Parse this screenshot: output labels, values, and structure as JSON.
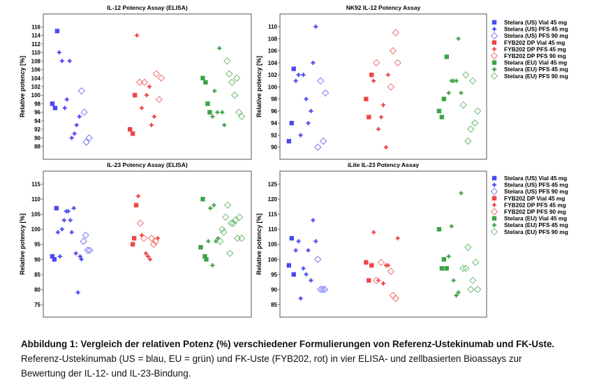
{
  "legend": [
    {
      "label": "Stelara (US) Vial 45 mg",
      "color": "#4a4af2",
      "marker": "square"
    },
    {
      "label": "Stelara (US) PFS 45 mg",
      "color": "#4a4af2",
      "marker": "plus"
    },
    {
      "label": "Stelara (US) PFS 90 mg",
      "color": "#7a7af5",
      "marker": "diamond"
    },
    {
      "label": "FYB202 DP Vial 45 mg",
      "color": "#ec4646",
      "marker": "square"
    },
    {
      "label": "FYB202 DP PFS 45 mg",
      "color": "#ec4646",
      "marker": "plus"
    },
    {
      "label": "FYB202 DP PFS 90 mg",
      "color": "#ef7272",
      "marker": "diamond"
    },
    {
      "label": "Stelara (EU) Vial 45 mg",
      "color": "#3da348",
      "marker": "square"
    },
    {
      "label": "Stelara (EU) PFS 45 mg",
      "color": "#3da348",
      "marker": "plus"
    },
    {
      "label": "Stelara (EU) PFS 90 mg",
      "color": "#6cbb72",
      "marker": "diamond"
    }
  ],
  "chart_data": [
    {
      "type": "scatter",
      "title": "IL-12 Potency Assay (ELISA)",
      "ylabel": "Relative potency [%]",
      "ylim": [
        85,
        119
      ],
      "yticks": [
        88,
        90,
        92,
        94,
        96,
        98,
        100,
        102,
        104,
        106,
        108,
        110,
        112,
        114,
        116
      ],
      "xlim": [
        0.5,
        3.5
      ],
      "series": [
        [
          [
            0.7,
            115
          ],
          [
            0.63,
            98
          ],
          [
            0.67,
            97
          ]
        ],
        [
          [
            0.73,
            110
          ],
          [
            0.77,
            108
          ],
          [
            0.88,
            108
          ],
          [
            0.84,
            99
          ],
          [
            0.81,
            97
          ],
          [
            1.02,
            95
          ],
          [
            0.98,
            93
          ],
          [
            0.95,
            91
          ],
          [
            0.91,
            90
          ]
        ],
        [
          [
            1.05,
            101
          ],
          [
            1.09,
            96
          ],
          [
            1.16,
            90
          ],
          [
            1.12,
            89
          ]
        ],
        [
          [
            1.82,
            100
          ],
          [
            1.75,
            92
          ],
          [
            1.79,
            91
          ]
        ],
        [
          [
            1.85,
            114
          ],
          [
            2.03,
            102
          ],
          [
            1.99,
            100
          ],
          [
            1.92,
            97
          ],
          [
            2.1,
            95
          ],
          [
            2.06,
            93
          ]
        ],
        [
          [
            1.89,
            103
          ],
          [
            1.96,
            103
          ],
          [
            2.13,
            105
          ],
          [
            2.2,
            104
          ],
          [
            2.17,
            99
          ]
        ],
        [
          [
            2.8,
            104
          ],
          [
            2.84,
            103
          ],
          [
            2.87,
            98
          ],
          [
            2.9,
            96
          ]
        ],
        [
          [
            3.04,
            111
          ],
          [
            2.97,
            101
          ],
          [
            3.01,
            96
          ],
          [
            3.08,
            96
          ],
          [
            2.94,
            95
          ],
          [
            3.11,
            93
          ]
        ],
        [
          [
            3.15,
            108
          ],
          [
            3.18,
            105
          ],
          [
            3.29,
            104
          ],
          [
            3.22,
            103
          ],
          [
            3.26,
            100
          ],
          [
            3.32,
            96
          ],
          [
            3.36,
            95
          ]
        ]
      ]
    },
    {
      "type": "scatter",
      "title": "NK92 IL-12 Potency Assay",
      "ylabel": "Relative potency [%]",
      "ylim": [
        88,
        112.1
      ],
      "yticks": [
        90,
        92,
        94,
        96,
        98,
        100,
        102,
        104,
        106,
        108,
        110
      ],
      "xlim": [
        0.5,
        3.5
      ],
      "series": [
        [
          [
            0.7,
            103
          ],
          [
            0.67,
            94
          ],
          [
            0.63,
            91
          ]
        ],
        [
          [
            1.02,
            110
          ],
          [
            0.98,
            104
          ],
          [
            0.77,
            102
          ],
          [
            0.84,
            102
          ],
          [
            0.73,
            101
          ],
          [
            0.88,
            98
          ],
          [
            0.95,
            96
          ],
          [
            0.91,
            94
          ],
          [
            0.8,
            92
          ]
        ],
        [
          [
            1.09,
            101
          ],
          [
            1.16,
            99
          ],
          [
            1.13,
            91
          ],
          [
            1.05,
            90
          ]
        ],
        [
          [
            1.83,
            102
          ],
          [
            1.75,
            98
          ],
          [
            1.79,
            95
          ]
        ],
        [
          [
            2.07,
            102
          ],
          [
            1.86,
            101
          ],
          [
            2.0,
            97
          ],
          [
            1.97,
            95
          ],
          [
            1.93,
            93
          ],
          [
            2.04,
            90
          ]
        ],
        [
          [
            2.18,
            109
          ],
          [
            2.14,
            106
          ],
          [
            1.9,
            104
          ],
          [
            2.21,
            104
          ],
          [
            2.11,
            100
          ]
        ],
        [
          [
            2.92,
            105
          ],
          [
            2.88,
            98
          ],
          [
            2.81,
            96
          ],
          [
            2.85,
            95
          ]
        ],
        [
          [
            3.09,
            108
          ],
          [
            2.99,
            101
          ],
          [
            3.02,
            101
          ],
          [
            3.06,
            101
          ],
          [
            2.95,
            99
          ],
          [
            3.13,
            99
          ]
        ],
        [
          [
            3.2,
            102
          ],
          [
            3.3,
            101
          ],
          [
            3.16,
            97
          ],
          [
            3.37,
            96
          ],
          [
            3.33,
            94
          ],
          [
            3.27,
            93
          ],
          [
            3.23,
            91
          ]
        ]
      ]
    },
    {
      "type": "scatter",
      "title": "IL-23 Potency Assay (ELISA)",
      "ylabel": "Relative potency [%]",
      "ylim": [
        70.8,
        119.3
      ],
      "yticks": [
        75,
        80,
        85,
        90,
        95,
        100,
        105,
        110,
        115
      ],
      "xlim": [
        0.5,
        3.5
      ],
      "series": [
        [
          [
            0.69,
            107
          ],
          [
            0.63,
            91
          ],
          [
            0.66,
            90
          ]
        ],
        [
          [
            0.94,
            107
          ],
          [
            0.83,
            106
          ],
          [
            0.86,
            106
          ],
          [
            0.8,
            103
          ],
          [
            0.89,
            103
          ],
          [
            0.77,
            100
          ],
          [
            0.71,
            99
          ],
          [
            0.91,
            99
          ],
          [
            0.97,
            92
          ],
          [
            0.74,
            91
          ],
          [
            1.03,
            91
          ],
          [
            1.05,
            90
          ],
          [
            1.0,
            79
          ]
        ],
        [
          [
            1.11,
            98
          ],
          [
            1.08,
            96
          ],
          [
            1.14,
            93
          ],
          [
            1.17,
            93
          ]
        ],
        [
          [
            1.84,
            108
          ],
          [
            1.81,
            97
          ],
          [
            1.79,
            95
          ]
        ],
        [
          [
            1.87,
            111
          ],
          [
            1.92,
            98
          ],
          [
            2.15,
            97
          ],
          [
            1.98,
            92
          ],
          [
            2.01,
            91
          ],
          [
            2.04,
            90
          ]
        ],
        [
          [
            1.9,
            102
          ],
          [
            1.95,
            97
          ],
          [
            2.06,
            97
          ],
          [
            2.12,
            96
          ],
          [
            2.09,
            95
          ]
        ],
        [
          [
            2.8,
            110
          ],
          [
            2.77,
            94
          ],
          [
            2.83,
            91
          ],
          [
            2.85,
            90
          ]
        ],
        [
          [
            2.96,
            108
          ],
          [
            2.91,
            107
          ],
          [
            2.88,
            96
          ],
          [
            3.02,
            97
          ],
          [
            2.99,
            96
          ],
          [
            2.94,
            88
          ]
        ],
        [
          [
            3.16,
            108
          ],
          [
            3.13,
            104
          ],
          [
            3.08,
            100
          ],
          [
            3.1,
            99
          ],
          [
            3.05,
            96
          ],
          [
            3.33,
            104
          ],
          [
            3.27,
            103
          ],
          [
            3.21,
            102
          ],
          [
            3.24,
            102
          ],
          [
            3.3,
            97
          ],
          [
            3.36,
            97
          ],
          [
            3.19,
            92
          ]
        ]
      ]
    },
    {
      "type": "scatter",
      "title": "iLite IL-23 Potency Assay",
      "ylabel": "Relative potency [%]",
      "ylim": [
        80.8,
        129.3
      ],
      "yticks": [
        85,
        90,
        95,
        100,
        105,
        110,
        115,
        120,
        125
      ],
      "xlim": [
        0.5,
        3.5
      ],
      "series": [
        [
          [
            0.67,
            107
          ],
          [
            0.63,
            98
          ],
          [
            0.7,
            95
          ]
        ],
        [
          [
            0.98,
            113
          ],
          [
            0.77,
            106
          ],
          [
            1.02,
            106
          ],
          [
            0.73,
            103
          ],
          [
            0.91,
            103
          ],
          [
            0.84,
            97
          ],
          [
            0.88,
            95
          ],
          [
            0.95,
            93
          ],
          [
            0.8,
            87
          ]
        ],
        [
          [
            1.05,
            100
          ],
          [
            1.09,
            90
          ],
          [
            1.12,
            90
          ],
          [
            1.15,
            90
          ]
        ],
        [
          [
            1.75,
            99
          ],
          [
            1.83,
            98
          ],
          [
            1.79,
            93
          ]
        ],
        [
          [
            1.86,
            109
          ],
          [
            2.21,
            107
          ],
          [
            2.04,
            98
          ],
          [
            2.07,
            98
          ],
          [
            1.93,
            93
          ],
          [
            2.0,
            92
          ]
        ],
        [
          [
            1.97,
            99
          ],
          [
            2.11,
            96
          ],
          [
            1.9,
            93
          ],
          [
            2.14,
            88
          ],
          [
            2.18,
            87
          ]
        ],
        [
          [
            2.81,
            110
          ],
          [
            2.88,
            100
          ],
          [
            2.85,
            97
          ],
          [
            2.92,
            97
          ]
        ],
        [
          [
            3.13,
            122
          ],
          [
            2.99,
            111
          ],
          [
            2.95,
            101
          ],
          [
            3.02,
            93
          ],
          [
            3.09,
            89
          ],
          [
            3.06,
            88
          ]
        ],
        [
          [
            3.23,
            104
          ],
          [
            3.34,
            99
          ],
          [
            3.16,
            97
          ],
          [
            3.2,
            97
          ],
          [
            3.3,
            93
          ],
          [
            3.27,
            90
          ],
          [
            3.37,
            90
          ]
        ]
      ]
    }
  ],
  "caption": {
    "title": "Abbildung 1: Vergleich der relativen Potenz (%) verschiedener Formulierungen von Referenz-Ustekinumab und FK-Uste.",
    "line1": "Referenz-Ustekinumab (US = blau, EU = grün) und FK-Uste (FYB202, rot) in vier ELISA- und zellbasierten Bioassays zur",
    "line2": "Bewertung der IL-12- und IL-23-Bindung."
  }
}
